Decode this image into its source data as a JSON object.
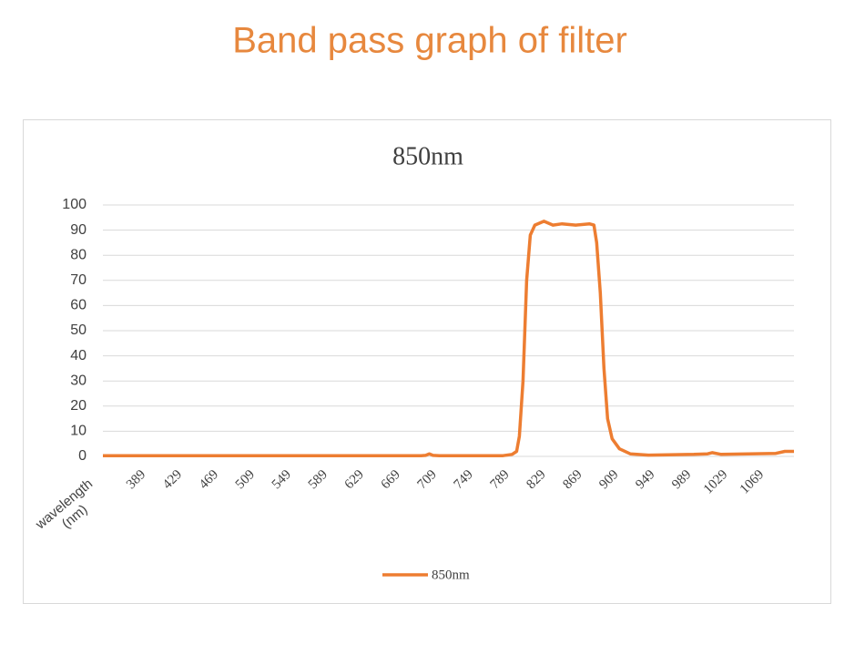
{
  "page_title": "Band pass graph of filter",
  "chart_data": {
    "type": "line",
    "title": "850nm",
    "x_label": [
      "wavelength",
      "(nm)"
    ],
    "x": [
      350,
      400,
      450,
      500,
      550,
      600,
      650,
      700,
      705,
      709,
      713,
      720,
      760,
      790,
      800,
      805,
      808,
      812,
      816,
      820,
      825,
      835,
      845,
      855,
      870,
      885,
      890,
      893,
      897,
      901,
      905,
      910,
      918,
      930,
      950,
      1000,
      1015,
      1020,
      1030,
      1090,
      1100,
      1110
    ],
    "series": [
      {
        "name": "850nm",
        "color": "#ed7d31",
        "values": [
          0.3,
          0.3,
          0.3,
          0.3,
          0.3,
          0.3,
          0.3,
          0.3,
          0.4,
          1,
          0.4,
          0.3,
          0.3,
          0.3,
          0.8,
          2,
          8,
          30,
          70,
          88,
          92,
          93.5,
          92,
          92.5,
          92,
          92.5,
          92,
          85,
          65,
          35,
          15,
          7,
          3,
          1,
          0.5,
          0.8,
          1,
          1.5,
          0.8,
          1.2,
          2,
          2
        ]
      }
    ],
    "xlim": [
      350,
      1110
    ],
    "xticks": [
      389,
      429,
      469,
      509,
      549,
      589,
      629,
      669,
      709,
      749,
      789,
      829,
      869,
      909,
      949,
      989,
      1029,
      1069
    ],
    "ylim": [
      0,
      100
    ],
    "yticks": [
      0,
      10,
      20,
      30,
      40,
      50,
      60,
      70,
      80,
      90,
      100
    ],
    "grid": true,
    "legend": "bottom"
  }
}
